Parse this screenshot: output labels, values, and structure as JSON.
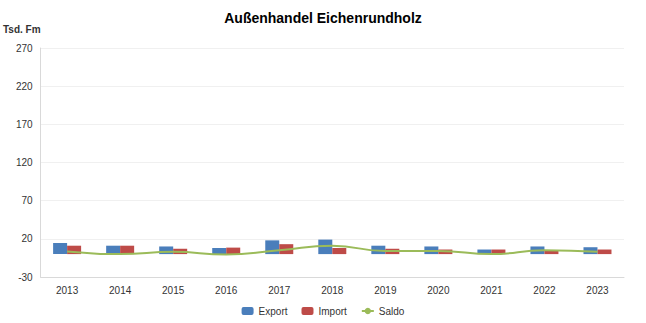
{
  "chart_data": {
    "type": "bar",
    "title": "Außenhandel Eichenrundholz",
    "y_label": "Tsd. Fm",
    "categories": [
      "2013",
      "2014",
      "2015",
      "2016",
      "2017",
      "2018",
      "2019",
      "2020",
      "2021",
      "2022",
      "2023"
    ],
    "series": [
      {
        "name": "Export",
        "type": "bar",
        "color": "#4a7ebb",
        "values": [
          14.5,
          11,
          10,
          8,
          18,
          19,
          11,
          10,
          6,
          10,
          9
        ]
      },
      {
        "name": "Import",
        "type": "bar",
        "color": "#be4b48",
        "values": [
          11,
          11,
          7,
          8.5,
          13,
          8,
          7,
          6,
          6,
          5,
          6
        ]
      },
      {
        "name": "Saldo",
        "type": "line",
        "color": "#9bbb59",
        "values": [
          3.5,
          0,
          3,
          -0.5,
          5,
          11,
          4,
          4,
          0,
          5,
          3
        ]
      }
    ],
    "ylim": [
      -30,
      270
    ],
    "yticks": [
      -30,
      20,
      70,
      120,
      170,
      220,
      270
    ],
    "grid": true,
    "legend": "bottom"
  }
}
